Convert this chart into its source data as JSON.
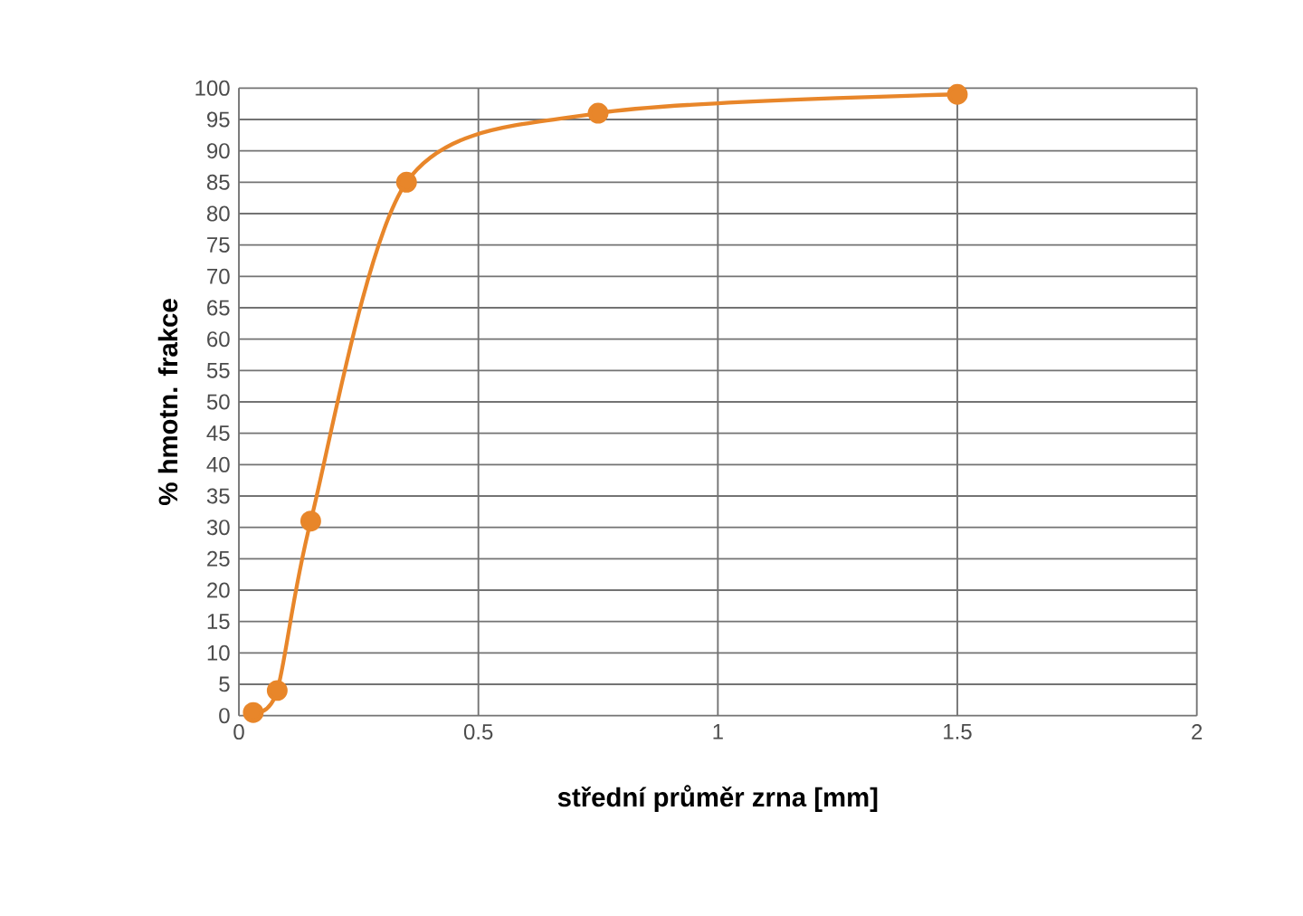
{
  "chart_data": {
    "type": "line",
    "xlabel": "**střední průměr zrna [mm]**",
    "ylabel": "**% hmotn. frakce**",
    "x": [
      0.03,
      0.08,
      0.15,
      0.35,
      0.75,
      1.5
    ],
    "series": [
      {
        "color": "#e8862a",
        "values": [
          0.5,
          4,
          31,
          85,
          96,
          99
        ]
      }
    ],
    "xlim": [
      0,
      2
    ],
    "xticks": [
      0,
      0.5,
      1,
      1.5,
      2
    ],
    "ylim": [
      0,
      100
    ],
    "yticks": [
      0,
      5,
      10,
      15,
      20,
      25,
      30,
      35,
      40,
      45,
      50,
      55,
      60,
      65,
      70,
      75,
      80,
      85,
      90,
      95,
      100
    ],
    "grid": true,
    "marker": "circle",
    "line_style": "solid"
  }
}
